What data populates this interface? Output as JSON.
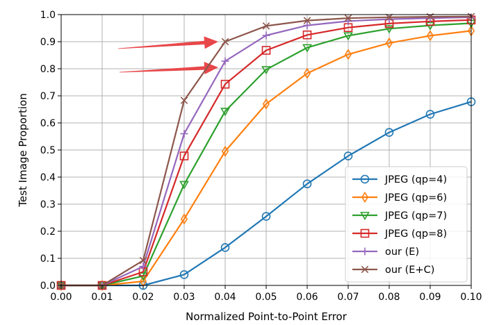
{
  "chart_data": {
    "type": "line",
    "title": "",
    "xlabel": "Normalized Point-to-Point Error",
    "ylabel": "Test Image Proportion",
    "xlim": [
      0.0,
      0.1
    ],
    "ylim": [
      0.0,
      1.0
    ],
    "x_ticks": [
      "0.00",
      "0.01",
      "0.02",
      "0.03",
      "0.04",
      "0.05",
      "0.06",
      "0.07",
      "0.08",
      "0.09",
      "0.10"
    ],
    "y_ticks": [
      "0.0",
      "0.1",
      "0.2",
      "0.3",
      "0.4",
      "0.5",
      "0.6",
      "0.7",
      "0.8",
      "0.9",
      "1.0"
    ],
    "grid": true,
    "legend_position": "lower-right",
    "x": [
      0.0,
      0.01,
      0.02,
      0.03,
      0.04,
      0.05,
      0.06,
      0.07,
      0.08,
      0.09,
      0.1
    ],
    "series": [
      {
        "name": "JPEG (qp=4)",
        "color": "#1f77b4",
        "marker": "circle",
        "values": [
          0.0,
          0.0,
          0.0,
          0.04,
          0.14,
          0.255,
          0.375,
          0.478,
          0.565,
          0.632,
          0.678
        ]
      },
      {
        "name": "JPEG (qp=6)",
        "color": "#ff7f0e",
        "marker": "diamond",
        "values": [
          0.0,
          0.0,
          0.015,
          0.245,
          0.495,
          0.67,
          0.783,
          0.853,
          0.895,
          0.922,
          0.94
        ]
      },
      {
        "name": "JPEG (qp=7)",
        "color": "#2ca02c",
        "marker": "triangle-down",
        "values": [
          0.0,
          0.0,
          0.035,
          0.373,
          0.643,
          0.797,
          0.878,
          0.922,
          0.948,
          0.96,
          0.968
        ]
      },
      {
        "name": "JPEG (qp=8)",
        "color": "#d62728",
        "marker": "square",
        "values": [
          0.0,
          0.0,
          0.05,
          0.478,
          0.743,
          0.868,
          0.925,
          0.952,
          0.967,
          0.975,
          0.98
        ]
      },
      {
        "name": "our (E)",
        "color": "#9467bd",
        "marker": "plus",
        "values": [
          0.0,
          0.0,
          0.07,
          0.56,
          0.828,
          0.923,
          0.96,
          0.976,
          0.983,
          0.987,
          0.99
        ]
      },
      {
        "name": "our (E+C)",
        "color": "#8c564b",
        "marker": "x",
        "values": [
          0.0,
          0.0,
          0.092,
          0.683,
          0.9,
          0.958,
          0.978,
          0.987,
          0.99,
          0.992,
          0.993
        ]
      }
    ],
    "annotations": [
      {
        "type": "arrow",
        "color": "#e8474a",
        "points_to": {
          "x": 0.04,
          "y": 0.9
        }
      },
      {
        "type": "arrow",
        "color": "#e8474a",
        "points_to": {
          "x": 0.04,
          "y": 0.805
        }
      }
    ]
  }
}
